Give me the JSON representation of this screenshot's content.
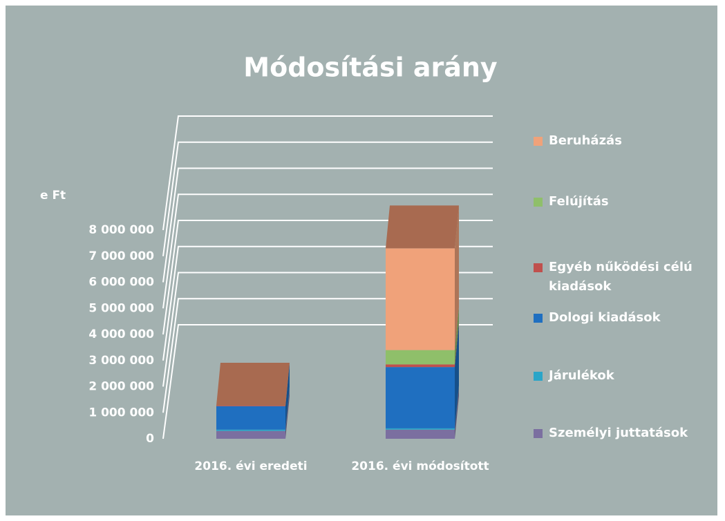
{
  "chart_data": {
    "type": "bar",
    "stacked": true,
    "title": "Módosítási arány",
    "y_label": "e Ft",
    "categories": [
      "2016. évi eredeti",
      "2016. évi módosított"
    ],
    "series": [
      {
        "name": "Személyi juttatások",
        "color": "#7b6fa0",
        "values": [
          300000,
          350000
        ]
      },
      {
        "name": "Járulékok",
        "color": "#2aa5c8",
        "values": [
          50000,
          50000
        ]
      },
      {
        "name": "Dologi kiadások",
        "color": "#1f6fc0",
        "values": [
          900000,
          2350000
        ]
      },
      {
        "name": "Egyéb nűködési célú kiadások",
        "color": "#c0504d",
        "values": [
          20000,
          100000
        ]
      },
      {
        "name": "Felújítás",
        "color": "#8fbf6a",
        "values": [
          0,
          550000
        ]
      },
      {
        "name": "Beruházás",
        "color": "#f0a27a",
        "values": [
          0,
          3900000
        ]
      }
    ],
    "ylim": [
      0,
      8000000
    ],
    "yticks": [
      {
        "value": 0,
        "label": "0"
      },
      {
        "value": 1000000,
        "label": "1 000 000"
      },
      {
        "value": 2000000,
        "label": "2 000 000"
      },
      {
        "value": 3000000,
        "label": "3 000 000"
      },
      {
        "value": 4000000,
        "label": "4 000 000"
      },
      {
        "value": 5000000,
        "label": "5 000 000"
      },
      {
        "value": 6000000,
        "label": "6 000 000"
      },
      {
        "value": 7000000,
        "label": "7 000 000"
      },
      {
        "value": 8000000,
        "label": "8 000 000"
      }
    ],
    "grid": true,
    "legend": "right"
  }
}
